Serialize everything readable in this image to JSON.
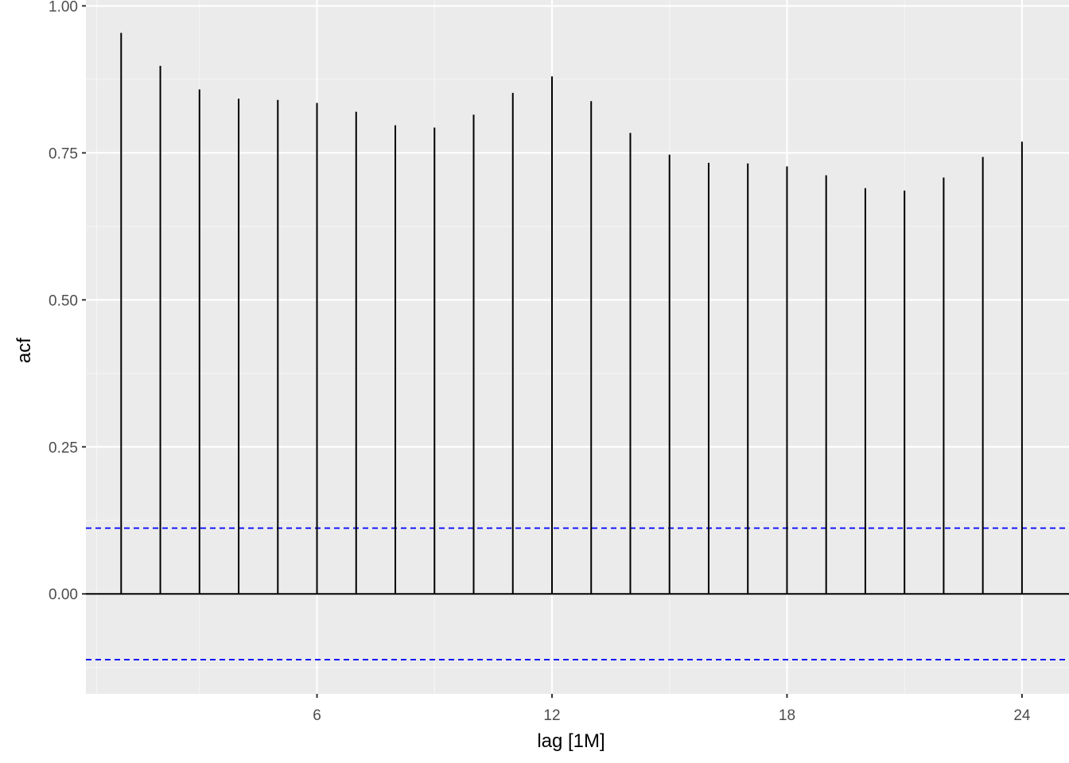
{
  "chart_data": {
    "type": "bar",
    "subtype": "acf-correlogram",
    "title": "",
    "xlabel": "lag [1M]",
    "ylabel": "acf",
    "xlim": [
      0.1,
      25.2
    ],
    "ylim": [
      -0.17,
      1.01
    ],
    "x_ticks": [
      6,
      12,
      18,
      24
    ],
    "x_tick_labels": [
      "6",
      "12",
      "18",
      "24"
    ],
    "y_ticks": [
      0,
      0.25,
      0.5,
      0.75,
      1.0
    ],
    "y_tick_labels": [
      "0.00",
      "0.25",
      "0.50",
      "0.75",
      "1.00"
    ],
    "grid": true,
    "lags": [
      1,
      2,
      3,
      4,
      5,
      6,
      7,
      8,
      9,
      10,
      11,
      12,
      13,
      14,
      15,
      16,
      17,
      18,
      19,
      20,
      21,
      22,
      23,
      24
    ],
    "values": [
      0.954,
      0.898,
      0.858,
      0.842,
      0.84,
      0.835,
      0.82,
      0.797,
      0.793,
      0.815,
      0.852,
      0.88,
      0.838,
      0.784,
      0.747,
      0.733,
      0.732,
      0.727,
      0.712,
      0.69,
      0.686,
      0.708,
      0.743,
      0.769
    ],
    "confidence_bound": 0.1118,
    "colors": {
      "panel_background": "#ebebeb",
      "grid_major": "#ffffff",
      "grid_minor": "#f5f5f5",
      "segment": "#000000",
      "zero_line": "#000000",
      "confidence_line": "#0000ff"
    }
  }
}
